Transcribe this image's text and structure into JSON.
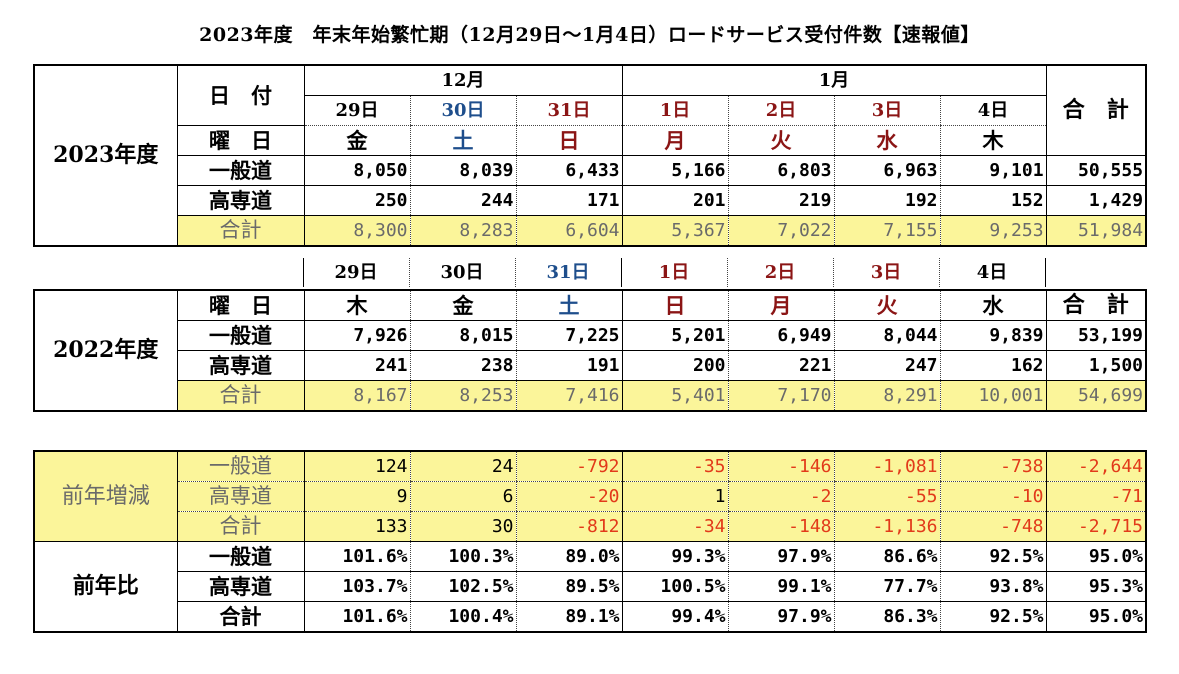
{
  "title": "2023年度　年末年始繁忙期（12月29日～1月4日）ロードサービス受付件数【速報値】",
  "t2023": {
    "year_label": "2023年度",
    "date_label": "日　付",
    "weekday_label": "曜　日",
    "month_dec": "12月",
    "month_jan": "1月",
    "total_label": "合　計",
    "dates": [
      "29日",
      "30日",
      "31日",
      "1日",
      "2日",
      "3日",
      "4日"
    ],
    "weekdays": [
      "金",
      "土",
      "日",
      "月",
      "火",
      "水",
      "木"
    ],
    "rows": [
      {
        "label": "一般道",
        "values": [
          "8,050",
          "8,039",
          "6,433",
          "5,166",
          "6,803",
          "6,963",
          "9,101"
        ],
        "total": "50,555"
      },
      {
        "label": "高専道",
        "values": [
          "250",
          "244",
          "171",
          "201",
          "219",
          "192",
          "152"
        ],
        "total": "1,429"
      },
      {
        "label": "合計",
        "values": [
          "8,300",
          "8,283",
          "6,604",
          "5,367",
          "7,022",
          "7,155",
          "9,253"
        ],
        "total": "51,984"
      }
    ]
  },
  "t2022": {
    "year_label": "2022年度",
    "weekday_label": "曜　日",
    "total_label": "合　計",
    "dates": [
      "29日",
      "30日",
      "31日",
      "1日",
      "2日",
      "3日",
      "4日"
    ],
    "weekdays": [
      "木",
      "金",
      "土",
      "日",
      "月",
      "火",
      "水"
    ],
    "rows": [
      {
        "label": "一般道",
        "values": [
          "7,926",
          "8,015",
          "7,225",
          "5,201",
          "6,949",
          "8,044",
          "9,839"
        ],
        "total": "53,199"
      },
      {
        "label": "高専道",
        "values": [
          "241",
          "238",
          "191",
          "200",
          "221",
          "247",
          "162"
        ],
        "total": "1,500"
      },
      {
        "label": "合計",
        "values": [
          "8,167",
          "8,253",
          "7,416",
          "5,401",
          "7,170",
          "8,291",
          "10,001"
        ],
        "total": "54,699"
      }
    ]
  },
  "diff": {
    "label": "前年増減",
    "rows": [
      {
        "label": "一般道",
        "values": [
          "124",
          "24",
          "-792",
          "-35",
          "-146",
          "-1,081",
          "-738"
        ],
        "total": "-2,644"
      },
      {
        "label": "高専道",
        "values": [
          "9",
          "6",
          "-20",
          "1",
          "-2",
          "-55",
          "-10"
        ],
        "total": "-71"
      },
      {
        "label": "合計",
        "values": [
          "133",
          "30",
          "-812",
          "-34",
          "-148",
          "-1,136",
          "-748"
        ],
        "total": "-2,715"
      }
    ]
  },
  "ratio": {
    "label": "前年比",
    "rows": [
      {
        "label": "一般道",
        "values": [
          "101.6%",
          "100.3%",
          "89.0%",
          "99.3%",
          "97.9%",
          "86.6%",
          "92.5%"
        ],
        "total": "95.0%"
      },
      {
        "label": "高専道",
        "values": [
          "103.7%",
          "102.5%",
          "89.5%",
          "100.5%",
          "99.1%",
          "77.7%",
          "93.8%"
        ],
        "total": "95.3%"
      },
      {
        "label": "合計",
        "values": [
          "101.6%",
          "100.4%",
          "89.1%",
          "99.4%",
          "97.9%",
          "86.3%",
          "92.5%"
        ],
        "total": "95.0%"
      }
    ]
  }
}
